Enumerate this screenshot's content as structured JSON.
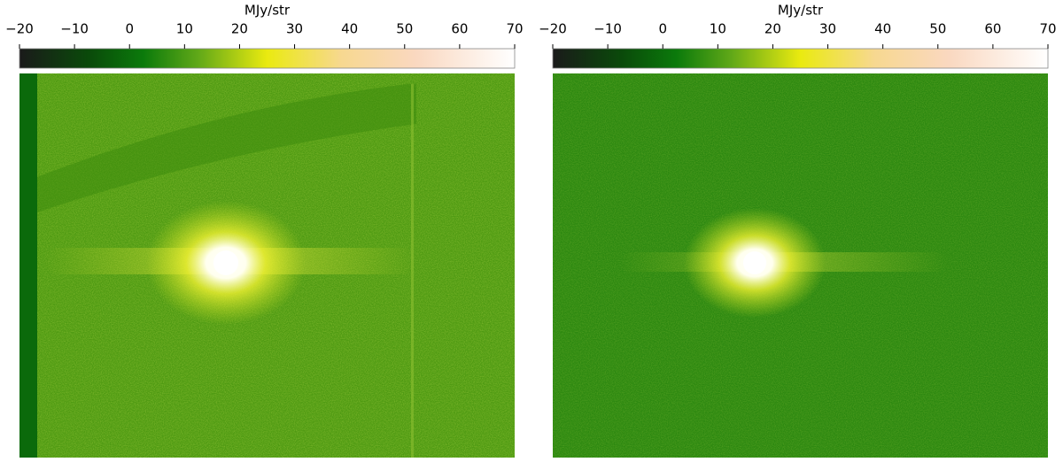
{
  "chart_data": [
    {
      "type": "image",
      "colorbar_label": "MJy/str",
      "clim": [
        -20,
        70
      ],
      "cticks": [
        {
          "value": -20,
          "label": "−20"
        },
        {
          "value": -10,
          "label": "−10"
        },
        0,
        10,
        20,
        30,
        40,
        50,
        60,
        70
      ]
    },
    {
      "type": "image",
      "colorbar_label": "MJy/str",
      "clim": [
        -20,
        70
      ],
      "cticks": [
        {
          "value": -20,
          "label": "−20"
        },
        {
          "value": -10,
          "label": "−10"
        },
        0,
        10,
        20,
        30,
        40,
        50,
        60,
        70
      ]
    }
  ]
}
